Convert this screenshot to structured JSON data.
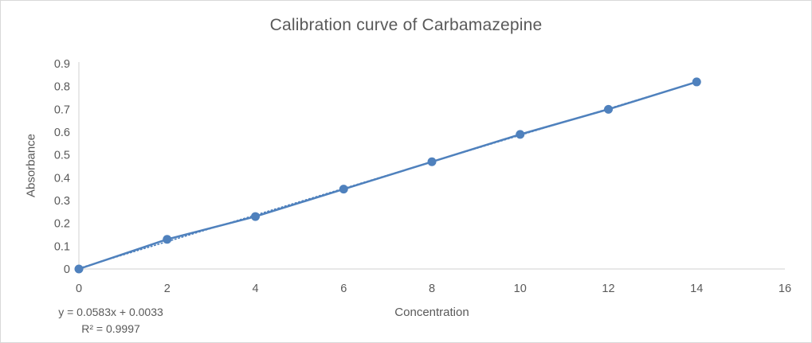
{
  "frame": {
    "background": "#FFFFFF",
    "border_color": "#D9D9D9"
  },
  "chart_data": {
    "type": "line",
    "title": "Calibration curve of Carbamazepine",
    "xlabel": "Concentration",
    "ylabel": "Absorbance",
    "x": [
      0,
      2,
      4,
      6,
      8,
      10,
      12,
      14
    ],
    "series": [
      {
        "name": "Absorbance",
        "values": [
          0,
          0.13,
          0.23,
          0.35,
          0.47,
          0.59,
          0.7,
          0.82
        ],
        "color": "#4F81BD",
        "marker": "circle",
        "line_style": "solid"
      }
    ],
    "trendline": {
      "type": "linear",
      "slope": 0.0583,
      "intercept": 0.0033,
      "color": "#4F81BD",
      "line_style": "dotted"
    },
    "annotations": {
      "equation": "y = 0.0583x + 0.0033",
      "r_squared": "R² = 0.9997"
    },
    "xlim": [
      0,
      16
    ],
    "ylim": [
      0,
      0.9
    ],
    "x_ticks": {
      "values": [
        0,
        2,
        4,
        6,
        8,
        10,
        12,
        14,
        16
      ],
      "labels": [
        "0",
        "2",
        "4",
        "6",
        "8",
        "10",
        "12",
        "14",
        "16"
      ]
    },
    "y_ticks": {
      "values": [
        0,
        0.1,
        0.2,
        0.3,
        0.4,
        0.5,
        0.6,
        0.7,
        0.8,
        0.9
      ],
      "labels": [
        "0",
        "0.1",
        "0.2",
        "0.3",
        "0.4",
        "0.5",
        "0.6",
        "0.7",
        "0.8",
        "0.9"
      ]
    },
    "grid": false,
    "legend": "none",
    "colors": {
      "axis_line": "#D0D0D0",
      "text": "#595959",
      "title": "#595959"
    }
  }
}
